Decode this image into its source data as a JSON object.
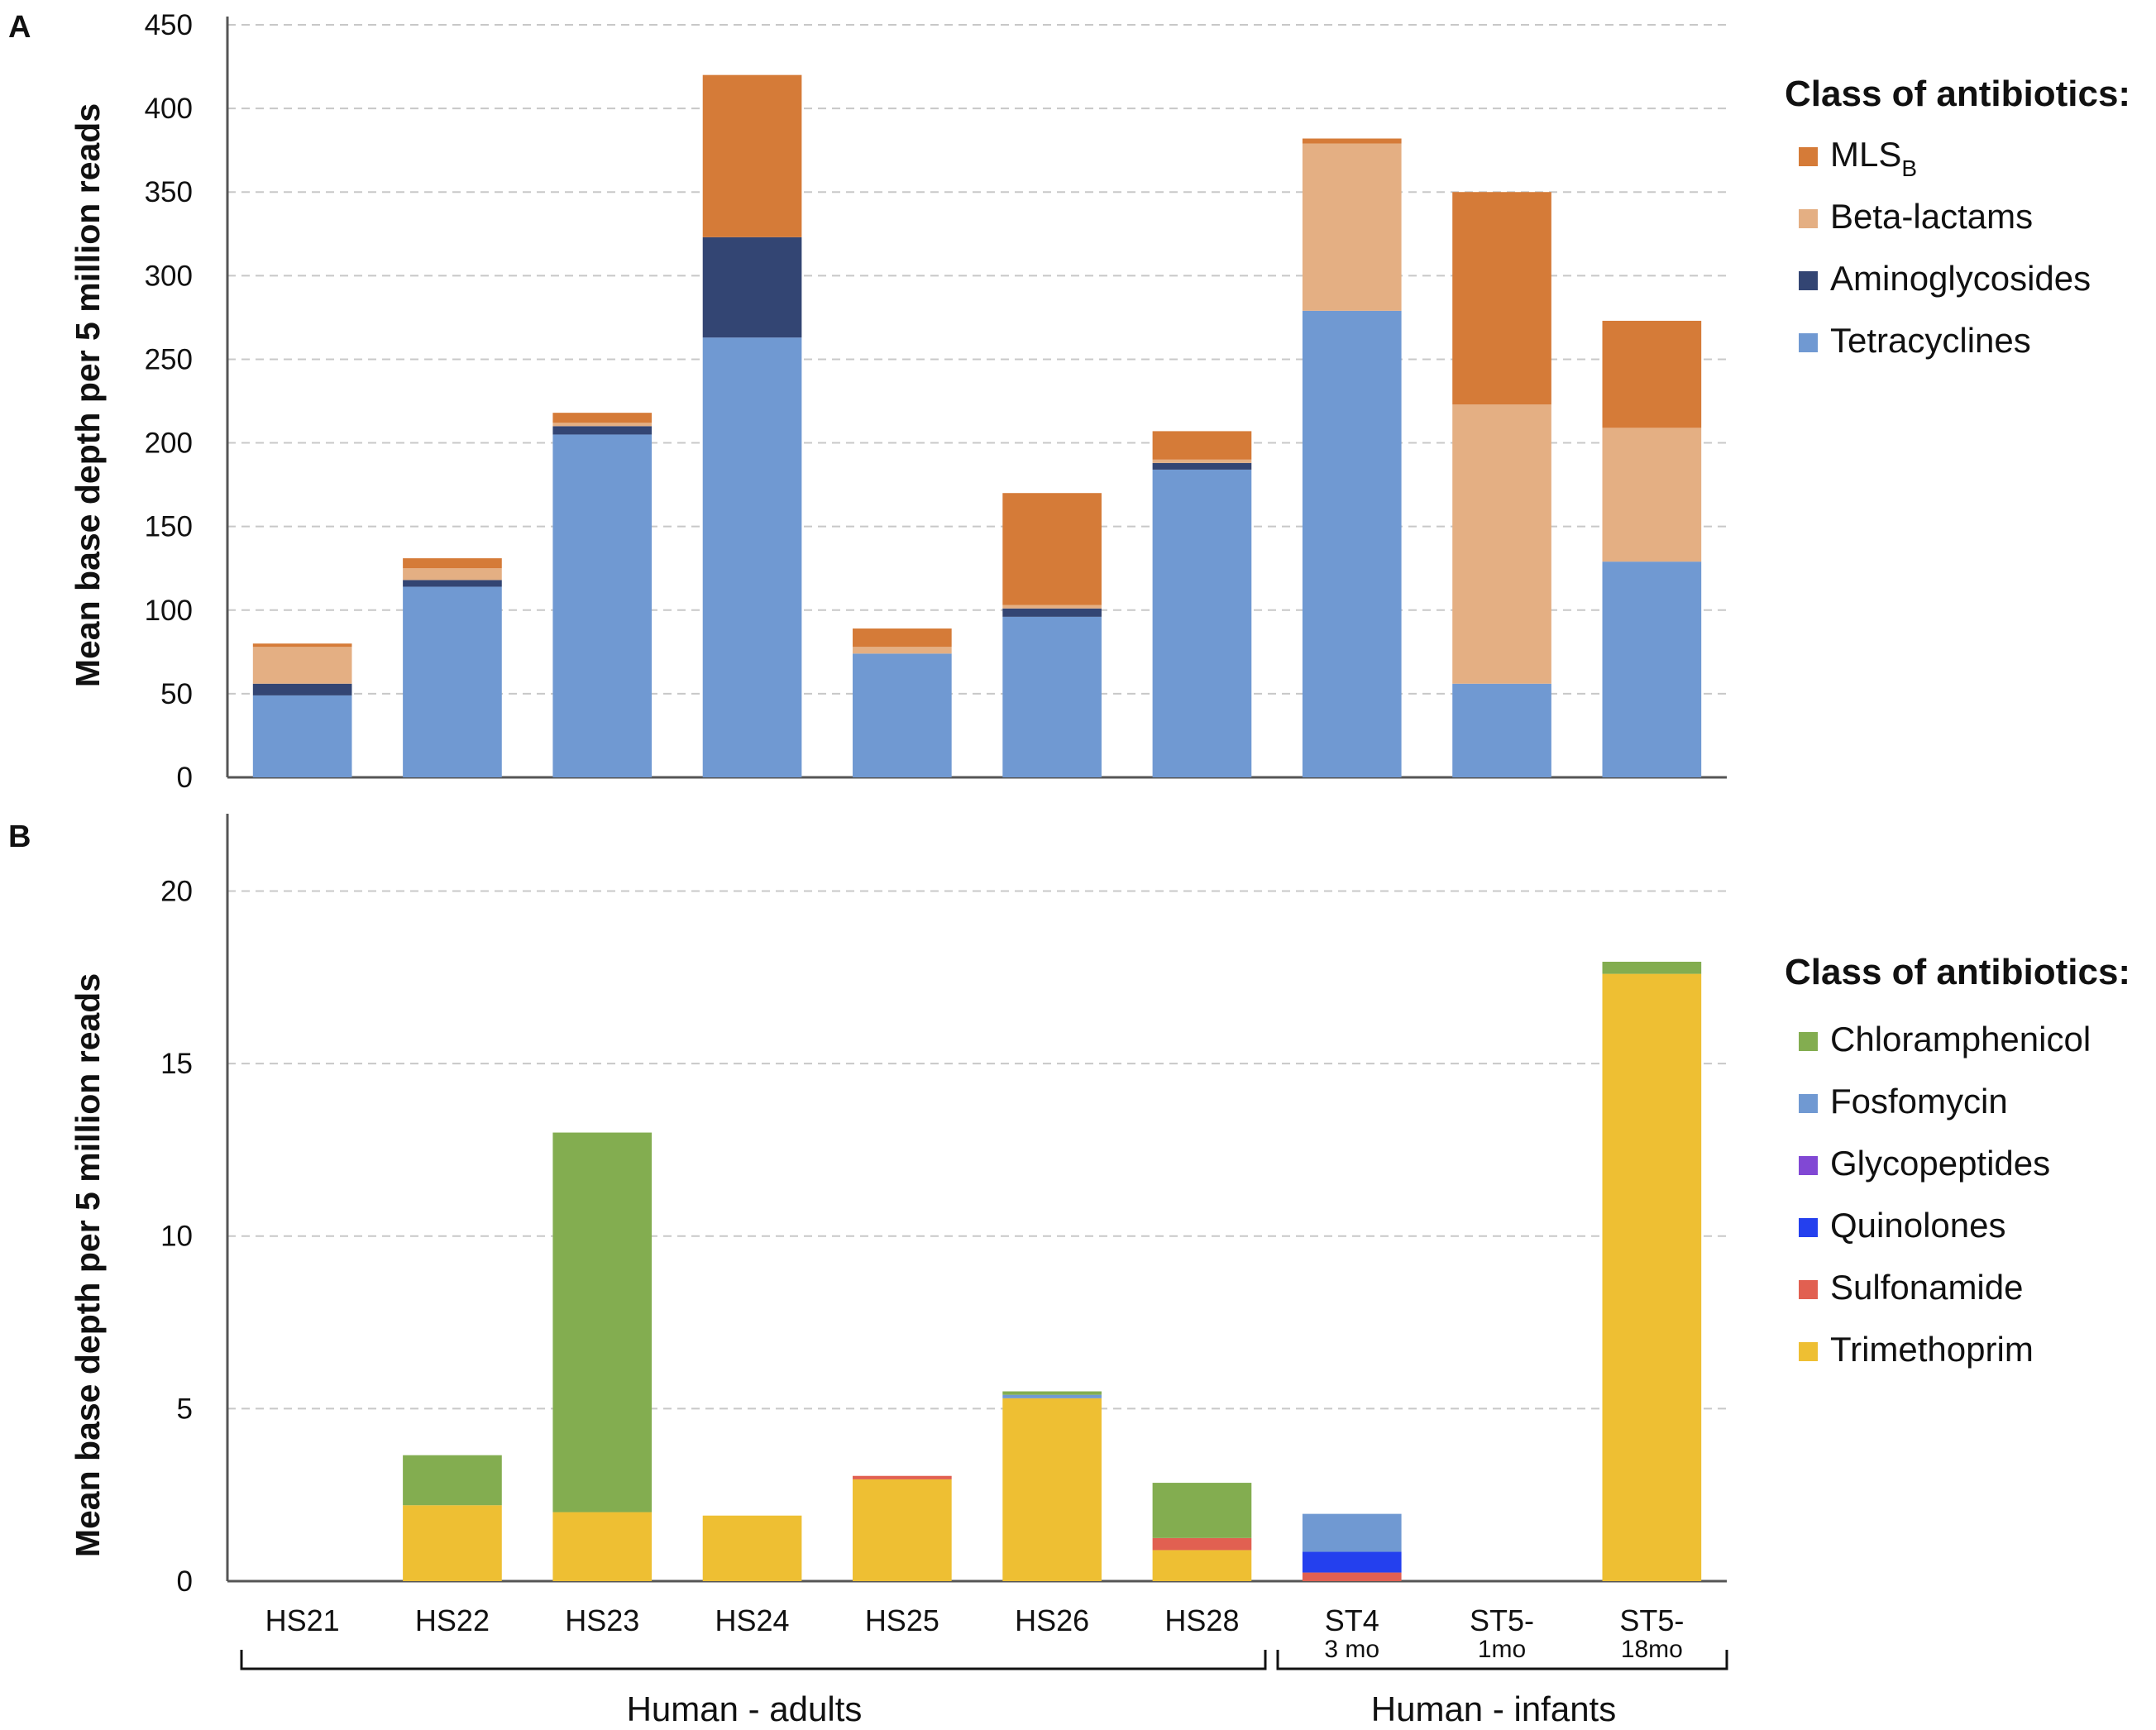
{
  "panel_labels": {
    "a": "A",
    "b": "B"
  },
  "group_labels": {
    "adults": "Human - adults",
    "infants": "Human - infants"
  },
  "categories": [
    {
      "label": "HS21",
      "sub": ""
    },
    {
      "label": "HS22",
      "sub": ""
    },
    {
      "label": "HS23",
      "sub": ""
    },
    {
      "label": "HS24",
      "sub": ""
    },
    {
      "label": "HS25",
      "sub": ""
    },
    {
      "label": "HS26",
      "sub": ""
    },
    {
      "label": "HS28",
      "sub": ""
    },
    {
      "label": "ST4",
      "sub": "3 mo"
    },
    {
      "label": "ST5-",
      "sub": "1mo"
    },
    {
      "label": "ST5-",
      "sub": "18mo"
    }
  ],
  "chart_data": [
    {
      "type": "bar",
      "stacked": true,
      "panel": "A",
      "ylabel": "Mean base depth per 5 million reads",
      "ylim": [
        0,
        450
      ],
      "yticks": [
        0,
        50,
        100,
        150,
        200,
        250,
        300,
        350,
        400,
        450
      ],
      "grid": true,
      "legend_title": "Class of antibiotics:",
      "series": [
        {
          "name": "Tetracyclines",
          "color": "#7099D2",
          "values": [
            49,
            114,
            205,
            263,
            74,
            96,
            184,
            279,
            56,
            129
          ]
        },
        {
          "name": "Aminoglycosides",
          "color": "#334573",
          "values": [
            7,
            4,
            5,
            60,
            0,
            5,
            4,
            0,
            0,
            0
          ]
        },
        {
          "name": "Beta-lactams",
          "color": "#E4AF83",
          "values": [
            22,
            7,
            2,
            0,
            4,
            2,
            2,
            100,
            167,
            80
          ]
        },
        {
          "name": "MLS",
          "color": "#D57B38",
          "values": [
            2,
            6,
            6,
            97,
            11,
            67,
            17,
            3,
            127,
            64
          ]
        }
      ],
      "legend_order": [
        3,
        2,
        1,
        0
      ],
      "legend_subscripts": {
        "MLS": "B"
      }
    },
    {
      "type": "bar",
      "stacked": true,
      "panel": "B",
      "ylabel": "Mean base depth per 5 million reads",
      "ylim": [
        0,
        22
      ],
      "yticks": [
        0,
        5,
        10,
        15,
        20
      ],
      "grid": true,
      "legend_title": "Class of antibiotics:",
      "series": [
        {
          "name": "Trimethoprim",
          "color": "#EEBF33",
          "values": [
            0,
            2.2,
            2.0,
            1.9,
            2.95,
            5.3,
            0.9,
            0,
            0,
            17.6
          ]
        },
        {
          "name": "Sulfonamide",
          "color": "#E16051",
          "values": [
            0,
            0,
            0,
            0,
            0.1,
            0,
            0.35,
            0.25,
            0,
            0
          ]
        },
        {
          "name": "Quinolones",
          "color": "#2440EE",
          "values": [
            0,
            0,
            0,
            0,
            0,
            0,
            0,
            0.6,
            0,
            0
          ]
        },
        {
          "name": "Glycopeptides",
          "color": "#8148D4",
          "values": [
            0,
            0,
            0,
            0,
            0,
            0,
            0,
            0,
            0,
            0
          ]
        },
        {
          "name": "Fosfomycin",
          "color": "#7099D2",
          "values": [
            0,
            0,
            0,
            0,
            0,
            0.1,
            0,
            1.1,
            0,
            0
          ]
        },
        {
          "name": "Chloramphenicol",
          "color": "#83AD50",
          "values": [
            0,
            1.45,
            11.0,
            0,
            0,
            0.1,
            1.6,
            0,
            0,
            0.35
          ]
        }
      ],
      "legend_order": [
        5,
        4,
        3,
        2,
        1,
        0
      ]
    }
  ]
}
